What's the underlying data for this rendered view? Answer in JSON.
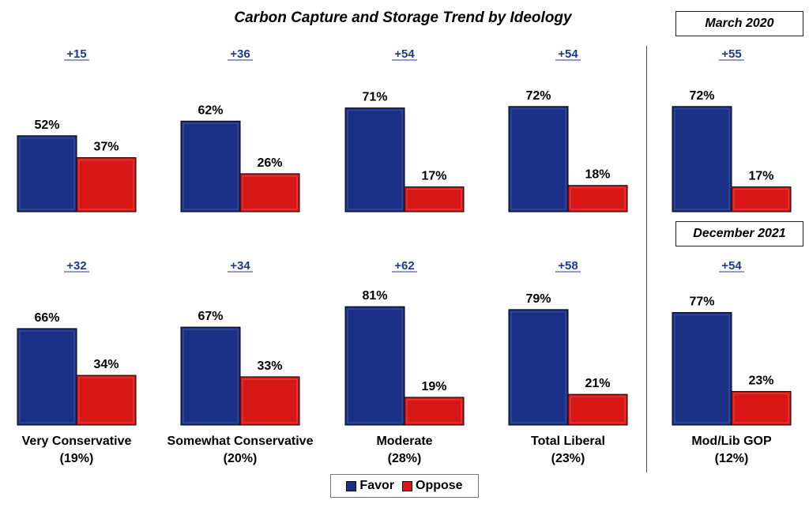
{
  "chart_data": {
    "type": "bar",
    "title": "Carbon Capture and Storage Trend by Ideology",
    "series_names": [
      "Favor",
      "Oppose"
    ],
    "colors": {
      "favor": "#1a2f86",
      "oppose": "#d81616",
      "margin_text": "#1f3a8c"
    },
    "period_labels": {
      "top": "March 2020",
      "bottom": "December 2021"
    },
    "categories": [
      {
        "name": "Very Conservative",
        "share": "(19%)"
      },
      {
        "name": "Somewhat Conservative",
        "share": "(20%)"
      },
      {
        "name": "Moderate",
        "share": "(28%)"
      },
      {
        "name": "Total Liberal",
        "share": "(23%)"
      },
      {
        "name": "Mod/Lib GOP",
        "share": "(12%)"
      }
    ],
    "rows": [
      {
        "period": "March 2020",
        "groups": [
          {
            "margin": "+15",
            "favor": 52,
            "oppose": 37
          },
          {
            "margin": "+36",
            "favor": 62,
            "oppose": 26
          },
          {
            "margin": "+54",
            "favor": 71,
            "oppose": 17
          },
          {
            "margin": "+54",
            "favor": 72,
            "oppose": 18
          },
          {
            "margin": "+55",
            "favor": 72,
            "oppose": 17
          }
        ]
      },
      {
        "period": "December 2021",
        "groups": [
          {
            "margin": "+32",
            "favor": 66,
            "oppose": 34
          },
          {
            "margin": "+34",
            "favor": 67,
            "oppose": 33
          },
          {
            "margin": "+62",
            "favor": 81,
            "oppose": 19
          },
          {
            "margin": "+58",
            "favor": 79,
            "oppose": 21
          },
          {
            "margin": "+54",
            "favor": 77,
            "oppose": 23
          }
        ]
      }
    ],
    "value_suffix": "%",
    "legend_position": "bottom-center"
  }
}
